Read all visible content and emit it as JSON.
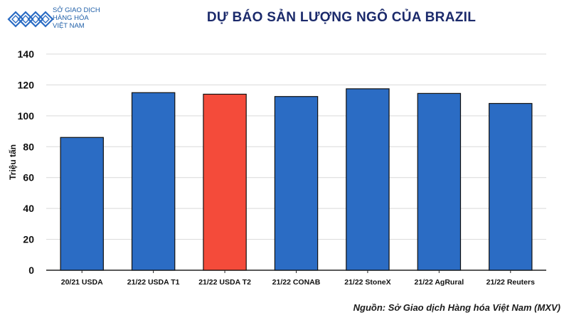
{
  "logo": {
    "line1": "SỞ GIAO DỊCH",
    "line2": "HÀNG HÓA",
    "line3": "VIỆT NAM"
  },
  "title": "DỰ BÁO SẢN LƯỢNG NGÔ CỦA BRAZIL",
  "source": "Nguồn: Sở Giao dịch Hàng hóa Việt Nam (MXV)",
  "colors": {
    "bar": "#2b6cc4",
    "highlight": "#f44b3a",
    "title": "#1b2a6b",
    "grid": "#d9d9d9"
  },
  "chart_data": {
    "type": "bar",
    "categories": [
      "20/21 USDA",
      "21/22 USDA T1",
      "21/22 USDA T2",
      "21/22 CONAB",
      "21/22 StoneX",
      "21/22 AgRural",
      "21/22 Reuters"
    ],
    "values": [
      86,
      115,
      114,
      112.5,
      117.5,
      114.5,
      108
    ],
    "highlight_index": 2,
    "ylabel": "Triệu tấn",
    "xlabel": "",
    "ylim": [
      0,
      140
    ],
    "yticks": [
      0,
      20,
      40,
      60,
      80,
      100,
      120,
      140
    ],
    "grid": true,
    "legend": "none"
  }
}
